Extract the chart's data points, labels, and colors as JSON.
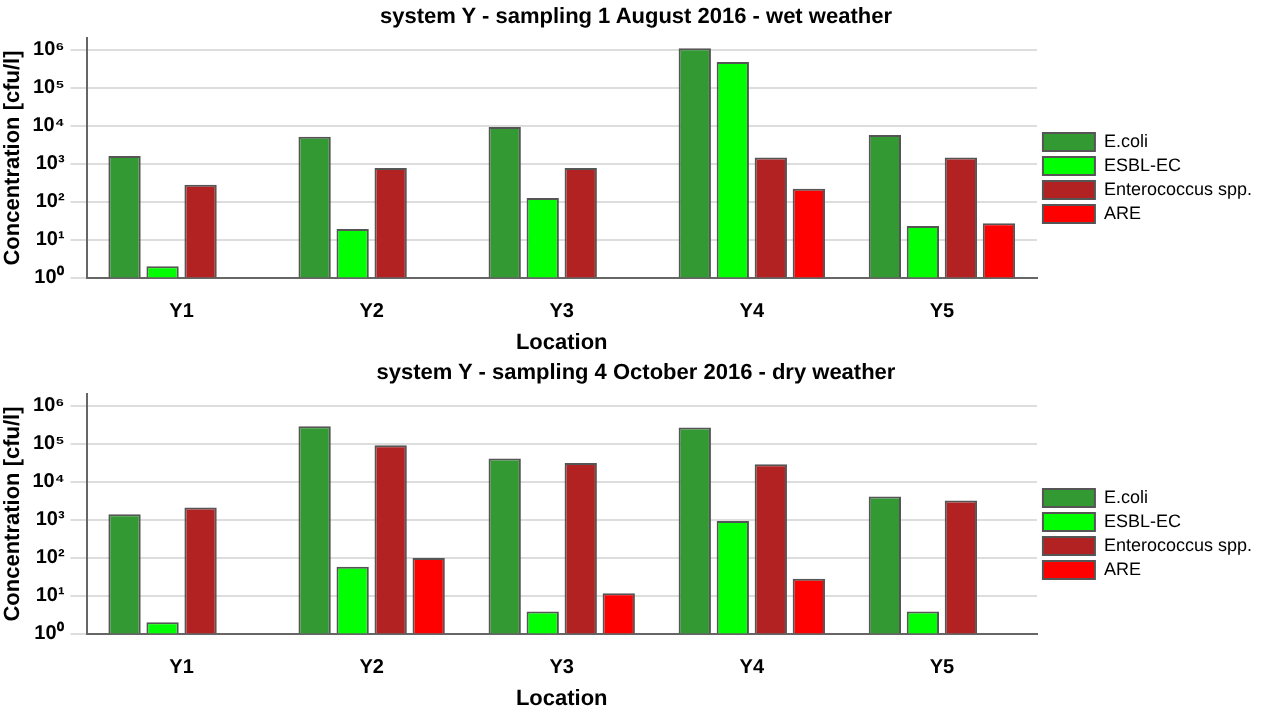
{
  "chart_data": [
    {
      "type": "bar",
      "title": "system Y - sampling 1 August 2016 - wet weather",
      "xlabel": "Location",
      "ylabel": "Concentration [cfu/l]",
      "categories": [
        "Y1",
        "Y2",
        "Y3",
        "Y4",
        "Y5"
      ],
      "series": [
        {
          "name": "E.coli",
          "color": "#339933",
          "values": [
            1600,
            5100,
            9300,
            1100000,
            5700
          ]
        },
        {
          "name": "ESBL-EC",
          "color": "#00ff00",
          "values": [
            2,
            19,
            125,
            480000,
            23
          ]
        },
        {
          "name": "Enterococcus spp.",
          "color": "#b22222",
          "values": [
            280,
            770,
            770,
            1450,
            1450
          ]
        },
        {
          "name": "ARE",
          "color": "#ff0000",
          "values": [
            null,
            null,
            null,
            220,
            27
          ]
        }
      ],
      "log": "y",
      "ylim": [
        1,
        2000000
      ],
      "yticks": [
        {
          "value": 1,
          "label": "10⁰"
        },
        {
          "value": 10,
          "label": "10¹"
        },
        {
          "value": 100,
          "label": "10²"
        },
        {
          "value": 1000,
          "label": "10³"
        },
        {
          "value": 10000,
          "label": "10⁴"
        },
        {
          "value": 100000,
          "label": "10⁵"
        },
        {
          "value": 1000000,
          "label": "10⁶"
        }
      ],
      "grid": "y",
      "legend": "right"
    },
    {
      "type": "bar",
      "title": "system Y - sampling 4 October 2016 - dry weather",
      "xlabel": "Location",
      "ylabel": "Concentration [cfu/l]",
      "categories": [
        "Y1",
        "Y2",
        "Y3",
        "Y4",
        "Y5"
      ],
      "series": [
        {
          "name": "E.coli",
          "color": "#339933",
          "values": [
            1400,
            290000,
            41000,
            270000,
            4100
          ]
        },
        {
          "name": "ESBL-EC",
          "color": "#00ff00",
          "values": [
            2,
            58,
            3.8,
            930,
            3.8
          ]
        },
        {
          "name": "Enterococcus spp.",
          "color": "#b22222",
          "values": [
            2100,
            91000,
            31000,
            29000,
            3200
          ]
        },
        {
          "name": "ARE",
          "color": "#ff0000",
          "values": [
            null,
            98,
            11.5,
            28,
            null
          ]
        }
      ],
      "log": "y",
      "ylim": [
        1,
        2000000
      ],
      "yticks": [
        {
          "value": 1,
          "label": "10⁰"
        },
        {
          "value": 10,
          "label": "10¹"
        },
        {
          "value": 100,
          "label": "10²"
        },
        {
          "value": 1000,
          "label": "10³"
        },
        {
          "value": 10000,
          "label": "10⁴"
        },
        {
          "value": 100000,
          "label": "10⁵"
        },
        {
          "value": 1000000,
          "label": "10⁶"
        }
      ],
      "grid": "y",
      "legend": "right"
    }
  ]
}
